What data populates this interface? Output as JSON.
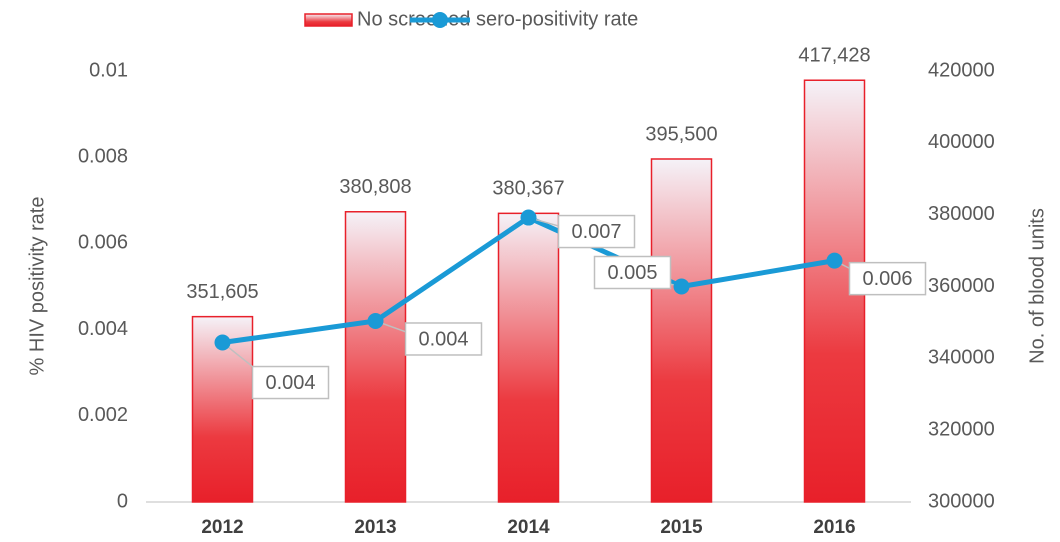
{
  "chart_data": {
    "type": "bar",
    "categories": [
      "2012",
      "2013",
      "2014",
      "2015",
      "2016"
    ],
    "series": [
      {
        "name": "No screened",
        "type": "bar",
        "axis": "y2",
        "color": "#e8202a",
        "values": [
          351605,
          380808,
          380367,
          395500,
          417428
        ],
        "value_labels": [
          "351,605",
          "380,808",
          "380,367",
          "395,500",
          "417,428"
        ]
      },
      {
        "name": "sero-positivity rate",
        "type": "line",
        "color": "#1a9ad6",
        "values": [
          0.0037,
          0.0042,
          0.0066,
          0.005,
          0.0056
        ],
        "value_labels": [
          "0.004",
          "0.004",
          "0.007",
          "0.005",
          "0.006"
        ]
      }
    ],
    "ylabel": "% HIV positivity rate",
    "y2label": "No. of blood units",
    "ylim": [
      0,
      0.01
    ],
    "yticks": [
      0,
      0.002,
      0.004,
      0.006,
      0.008,
      0.01
    ],
    "y2lim": [
      300000,
      420000
    ],
    "y2ticks": [
      300000,
      320000,
      340000,
      360000,
      380000,
      400000,
      420000
    ],
    "legend": "top"
  }
}
